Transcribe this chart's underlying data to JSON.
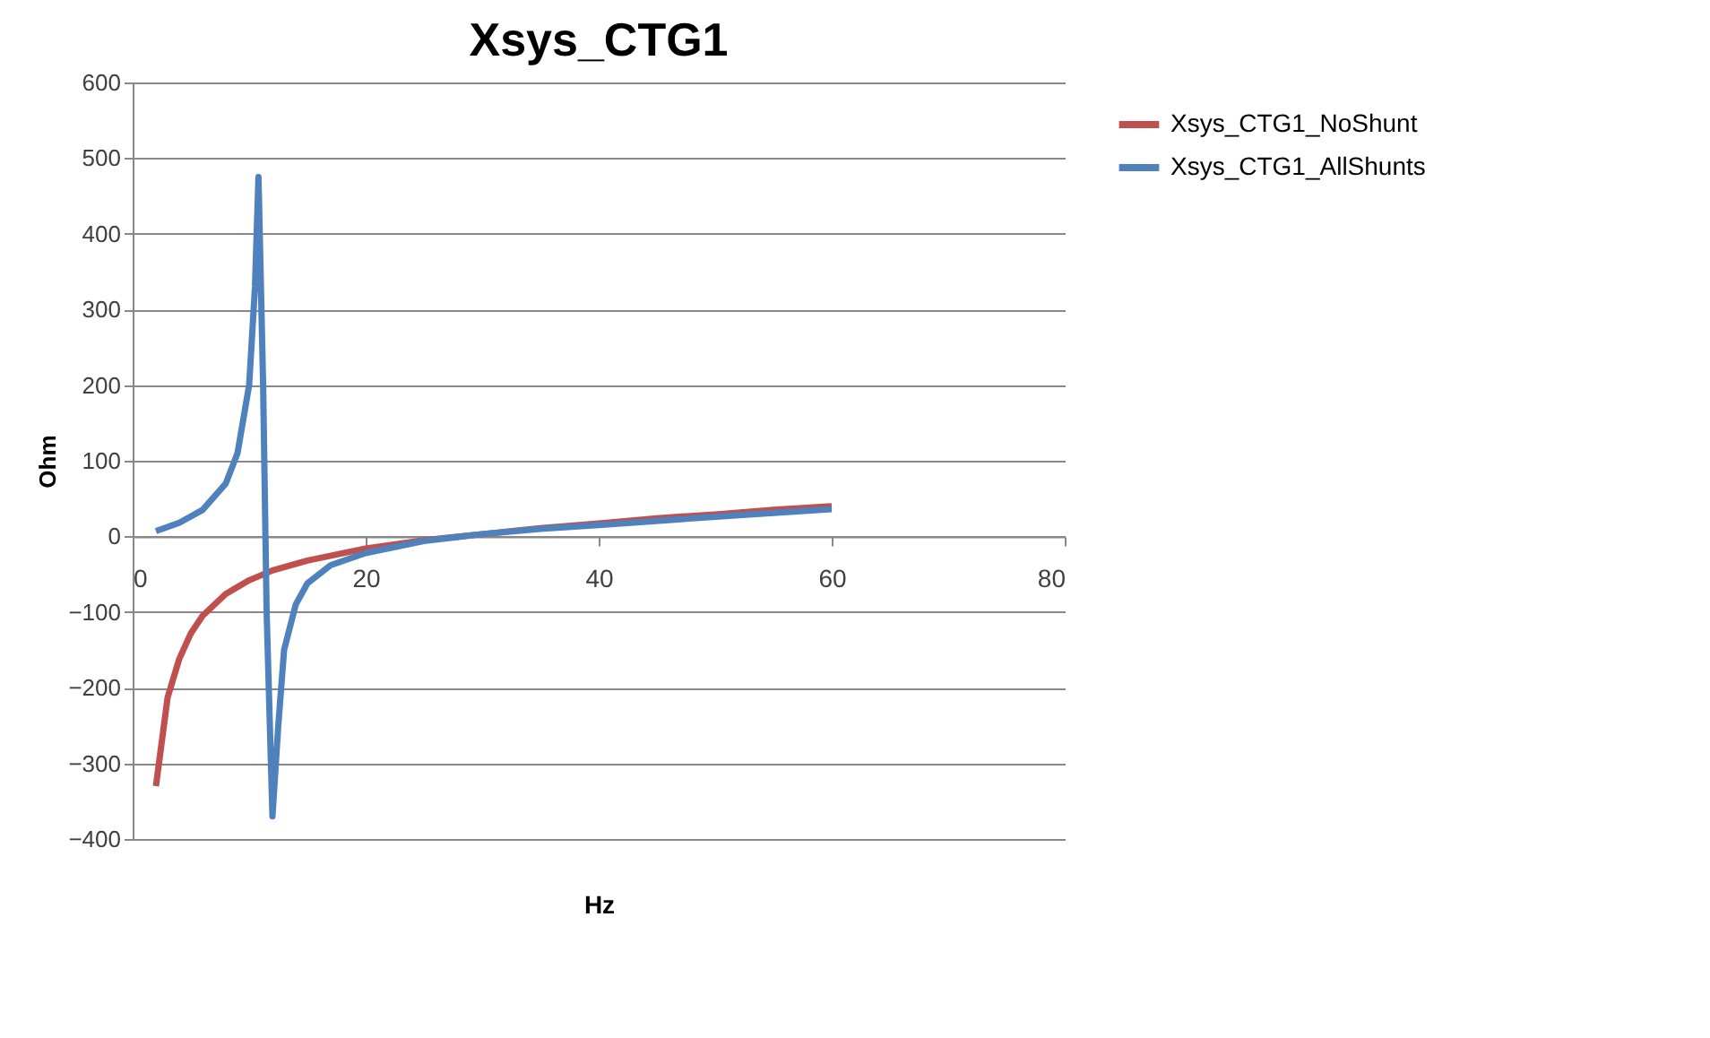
{
  "chart_data": {
    "type": "line",
    "title": "Xsys_CTG1",
    "xlabel": "Hz",
    "ylabel": "Ohm",
    "xlim": [
      0,
      80
    ],
    "xticks": [
      0,
      20,
      40,
      60,
      80
    ],
    "ylim": [
      -400,
      600
    ],
    "yticks": [
      -400,
      -300,
      -200,
      -100,
      0,
      100,
      200,
      300,
      400,
      500,
      600
    ],
    "grid": "y",
    "legend": "right",
    "marker": "none",
    "line_style": "solid",
    "series": [
      {
        "name": "Xsys_CTG1_NoShunt",
        "color": "#c0504d",
        "x": [
          2,
          3,
          4,
          5,
          6,
          8,
          10,
          12,
          15,
          20,
          25,
          30,
          35,
          40,
          45,
          50,
          55,
          60
        ],
        "values": [
          -330,
          -213,
          -162,
          -128,
          -105,
          -76,
          -58,
          -45,
          -32,
          -16,
          -5,
          3,
          11,
          17,
          24,
          29,
          35,
          40
        ]
      },
      {
        "name": "Xsys_CTG1_AllShunts",
        "color": "#4f81bd",
        "x": [
          2,
          4,
          6,
          8,
          9,
          10,
          10.5,
          10.8,
          11.2,
          11.5,
          12,
          12.5,
          13,
          14,
          15,
          17,
          20,
          25,
          30,
          35,
          40,
          50,
          60
        ],
        "values": [
          7,
          18,
          35,
          70,
          110,
          200,
          330,
          475,
          200,
          -100,
          -370,
          -250,
          -150,
          -90,
          -62,
          -38,
          -22,
          -6,
          3,
          10,
          15,
          26,
          36
        ]
      }
    ]
  }
}
